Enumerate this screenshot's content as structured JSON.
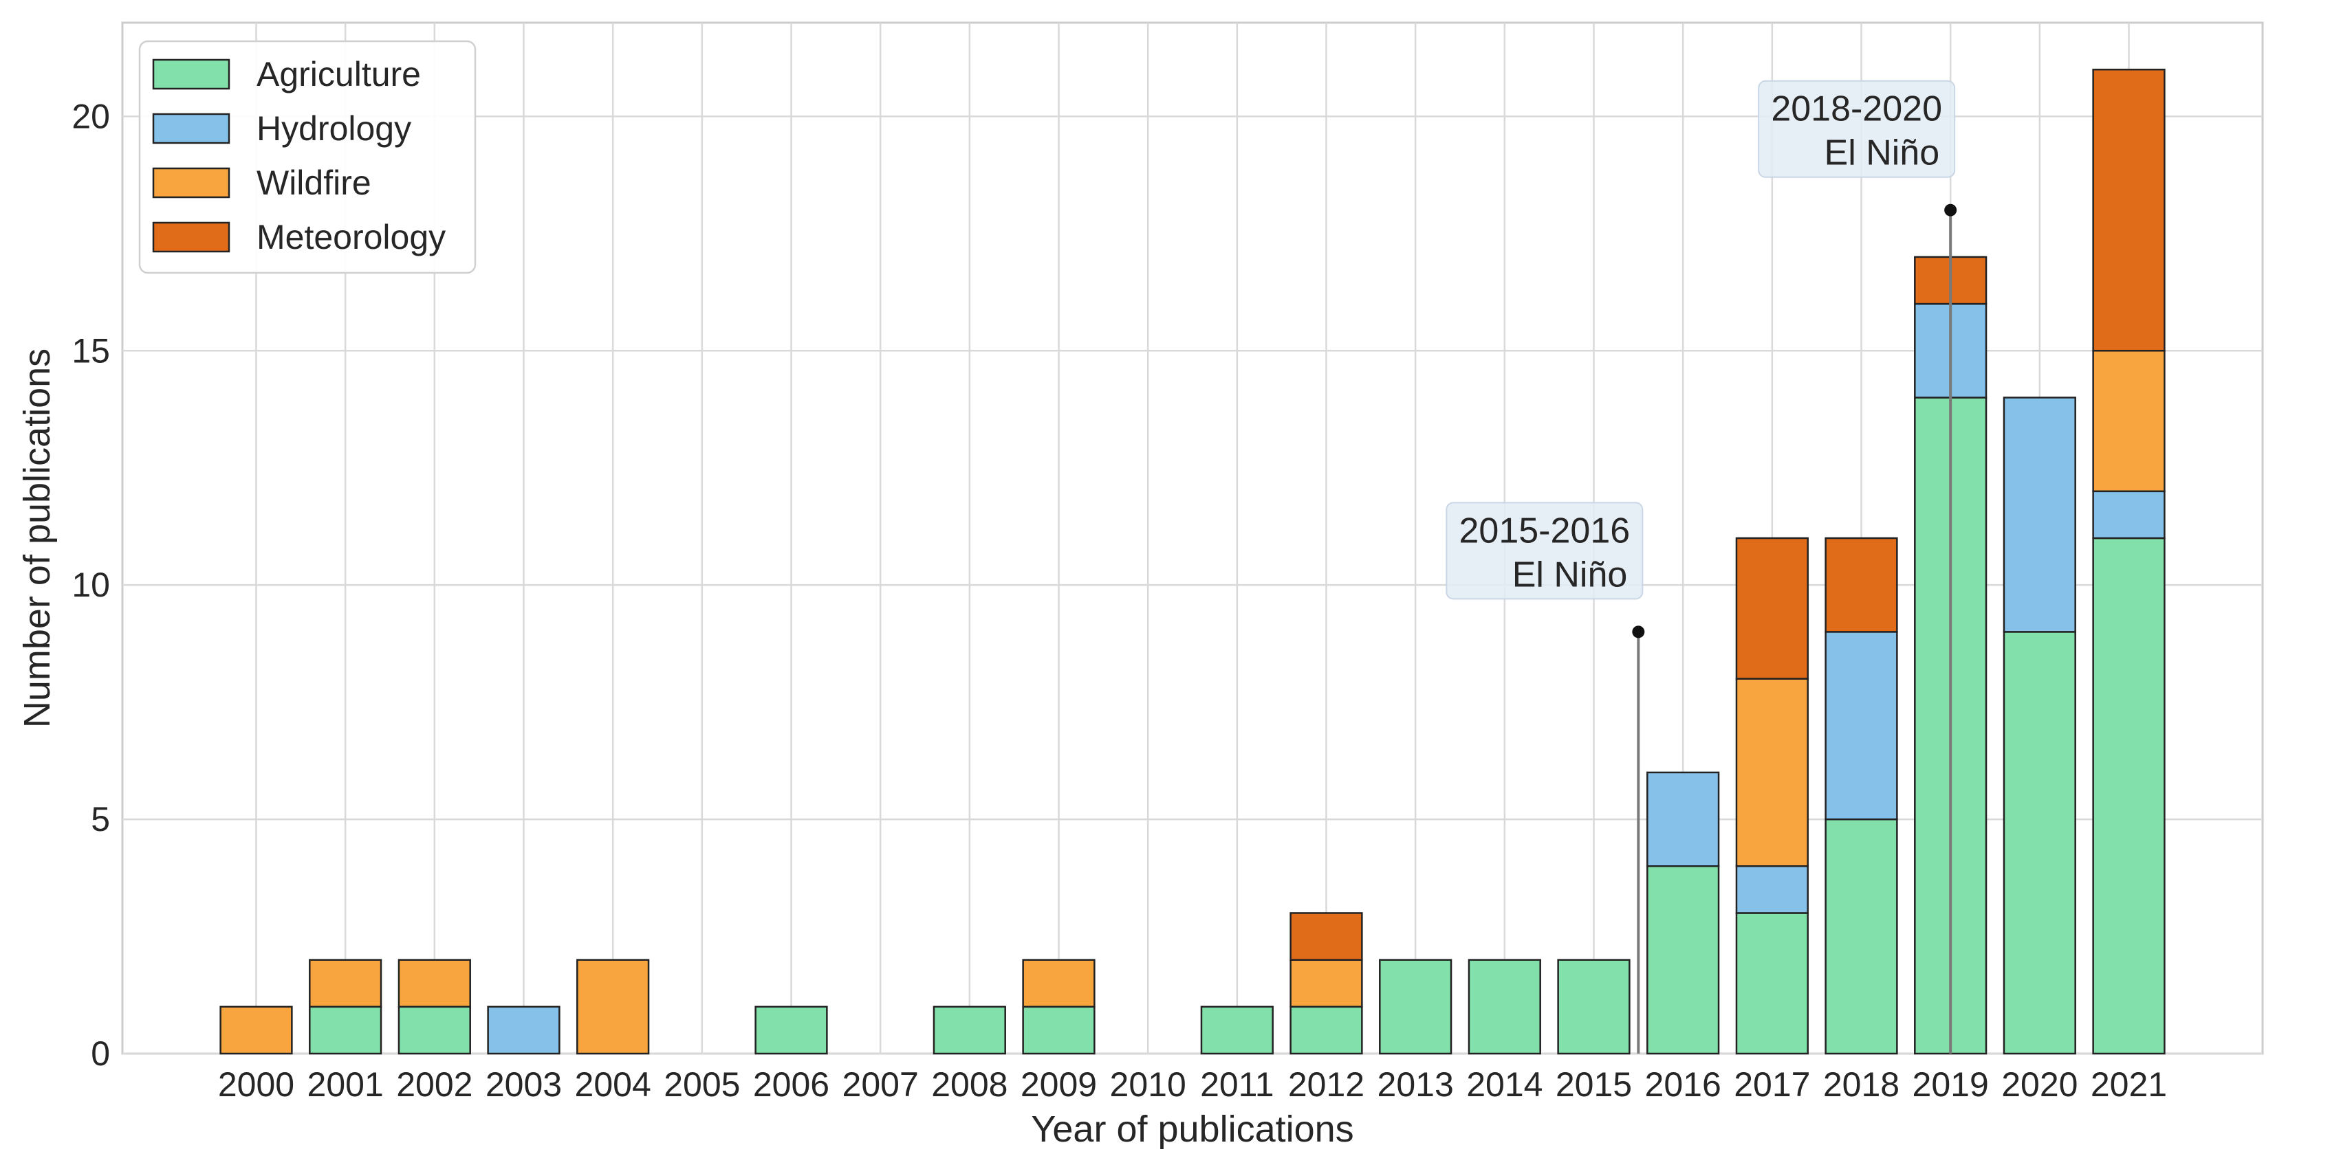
{
  "chart_data": {
    "type": "bar",
    "stacked": true,
    "xlabel": "Year of publications",
    "ylabel": "Number of publications",
    "ylim": [
      0,
      22
    ],
    "yticks": [
      0,
      5,
      10,
      15,
      20
    ],
    "grid": true,
    "legend_position": "top-left",
    "categories": [
      "2000",
      "2001",
      "2002",
      "2003",
      "2004",
      "2005",
      "2006",
      "2007",
      "2008",
      "2009",
      "2010",
      "2011",
      "2012",
      "2013",
      "2014",
      "2015",
      "2016",
      "2017",
      "2018",
      "2019",
      "2020",
      "2021"
    ],
    "series": [
      {
        "name": "Agriculture",
        "color": "#82e0aa",
        "values": [
          0,
          1,
          1,
          0,
          0,
          0,
          1,
          0,
          1,
          1,
          0,
          1,
          1,
          2,
          2,
          2,
          4,
          3,
          5,
          14,
          9,
          11
        ]
      },
      {
        "name": "Hydrology",
        "color": "#85c1e9",
        "values": [
          0,
          0,
          0,
          1,
          0,
          0,
          0,
          0,
          0,
          0,
          0,
          0,
          0,
          0,
          0,
          0,
          2,
          1,
          4,
          2,
          5,
          1
        ]
      },
      {
        "name": "Wildfire",
        "color": "#f8a540",
        "values": [
          1,
          1,
          1,
          0,
          2,
          0,
          0,
          0,
          0,
          1,
          0,
          0,
          1,
          0,
          0,
          0,
          0,
          4,
          0,
          0,
          0,
          3
        ]
      },
      {
        "name": "Meteorology",
        "color": "#e06c1a",
        "values": [
          0,
          0,
          0,
          0,
          0,
          0,
          0,
          0,
          0,
          0,
          0,
          0,
          1,
          0,
          0,
          0,
          0,
          3,
          2,
          1,
          0,
          6
        ]
      }
    ],
    "annotations": [
      {
        "line1": "2015-2016",
        "line2": "El Niño",
        "x": 2015.5,
        "y": 9
      },
      {
        "line1": "2018-2020",
        "line2": "El Niño",
        "x": 2019,
        "y": 18
      }
    ]
  }
}
